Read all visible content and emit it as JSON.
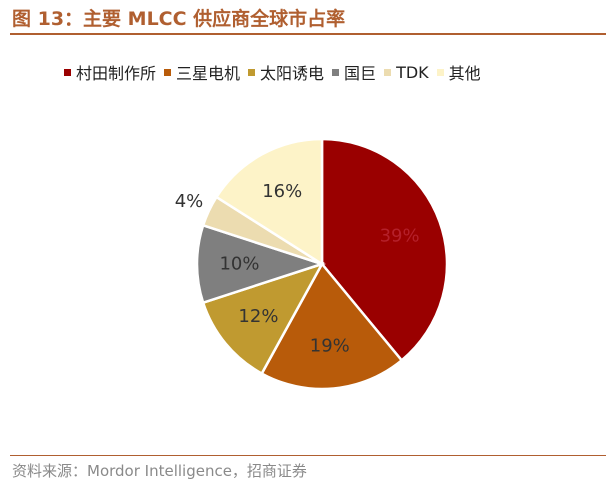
{
  "title": "图 13：主要 MLCC 供应商全球市占率",
  "source": "资料来源：Mordor Intelligence，招商证券",
  "chart_data": {
    "type": "pie",
    "categories": [
      "村田制作所",
      "三星电机",
      "太阳诱电",
      "国巨",
      "TDK",
      "其他"
    ],
    "values": [
      39,
      19,
      12,
      10,
      4,
      16
    ],
    "labels": [
      "39%",
      "19%",
      "12%",
      "10%",
      "4%",
      "16%"
    ],
    "colors": [
      "#9a0000",
      "#b85b0a",
      "#c09a30",
      "#7f7f7f",
      "#ecdcb0",
      "#fdf3c8"
    ],
    "label_colors": [
      "#b5202a",
      "#333333",
      "#333333",
      "#333333",
      "#333333",
      "#333333"
    ],
    "legend_position": "top"
  }
}
